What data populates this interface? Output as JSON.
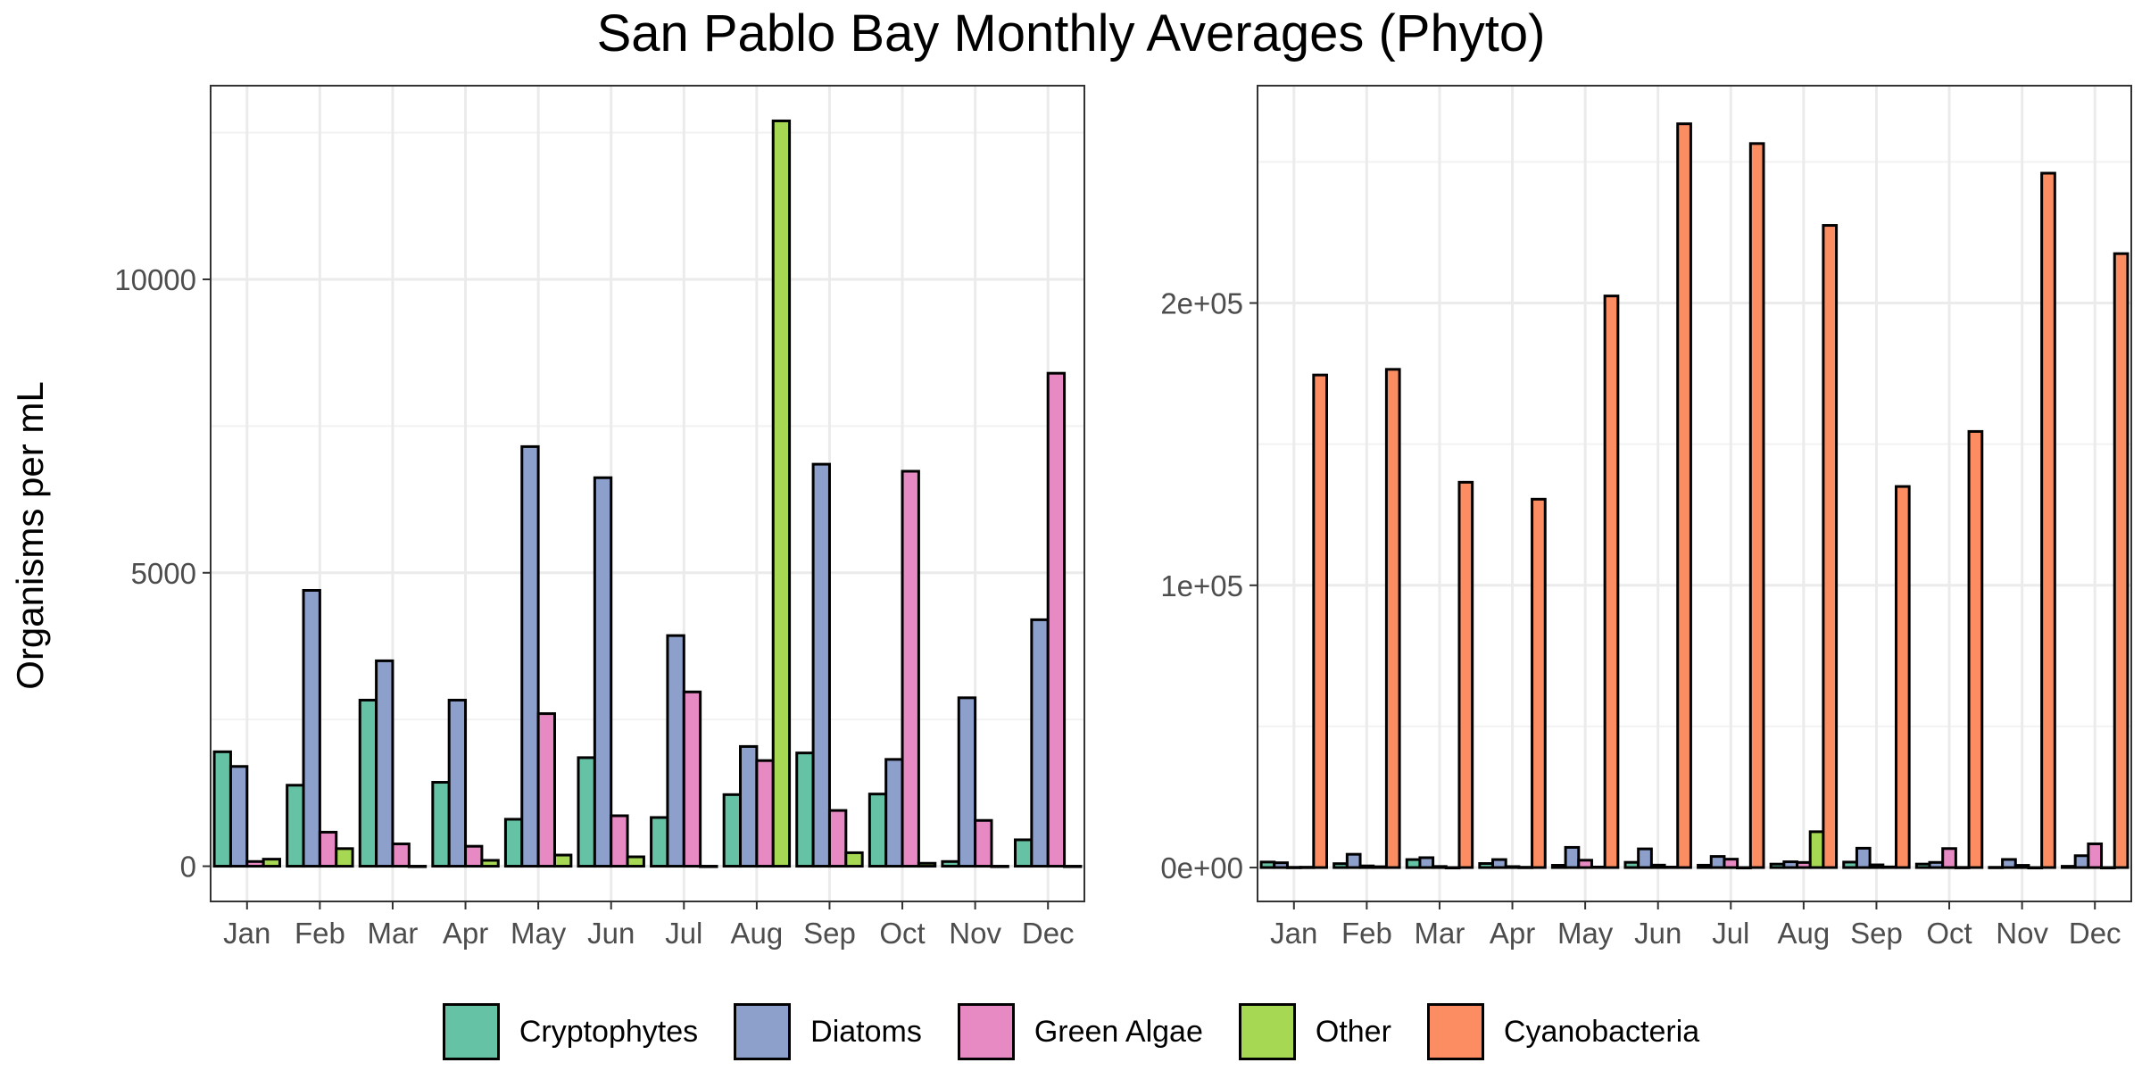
{
  "title": "San Pablo Bay Monthly Averages (Phyto)",
  "ylabel": "Organisms per mL",
  "colors": {
    "Cryptophytes": "#66C2A5",
    "Diatoms": "#8DA0CB",
    "Green Algae": "#E78AC3",
    "Other": "#A6D854",
    "Cyanobacteria": "#FC8D62"
  },
  "legend": [
    "Cryptophytes",
    "Diatoms",
    "Green Algae",
    "Other",
    "Cyanobacteria"
  ],
  "chart_data": [
    {
      "type": "bar",
      "categories": [
        "Jan",
        "Feb",
        "Mar",
        "Apr",
        "May",
        "Jun",
        "Jul",
        "Aug",
        "Sep",
        "Oct",
        "Nov",
        "Dec"
      ],
      "ylim": [
        -600,
        13300
      ],
      "yticks": [
        0,
        5000,
        10000
      ],
      "ytick_labels": [
        "0",
        "5000",
        "10000"
      ],
      "grid": true,
      "series": [
        {
          "name": "Cryptophytes",
          "values": [
            1950,
            1380,
            2830,
            1430,
            800,
            1850,
            830,
            1220,
            1930,
            1230,
            80,
            450
          ]
        },
        {
          "name": "Diatoms",
          "values": [
            1700,
            4700,
            3500,
            2830,
            7150,
            6620,
            3930,
            2040,
            6850,
            1820,
            2870,
            4200
          ]
        },
        {
          "name": "Green Algae",
          "values": [
            80,
            580,
            380,
            340,
            2600,
            860,
            2970,
            1800,
            950,
            6730,
            780,
            8400
          ]
        },
        {
          "name": "Other",
          "values": [
            120,
            300,
            0,
            100,
            190,
            160,
            0,
            12700,
            230,
            50,
            0,
            0
          ]
        }
      ]
    },
    {
      "type": "bar",
      "categories": [
        "Jan",
        "Feb",
        "Mar",
        "Apr",
        "May",
        "Jun",
        "Jul",
        "Aug",
        "Sep",
        "Oct",
        "Nov",
        "Dec"
      ],
      "ylim": [
        -12000,
        277000
      ],
      "yticks": [
        0,
        100000,
        200000
      ],
      "ytick_labels": [
        "0e+00",
        "1e+05",
        "2e+05"
      ],
      "grid": true,
      "series": [
        {
          "name": "Cryptophytes",
          "values": [
            1950,
            1380,
            2830,
            1430,
            800,
            1850,
            830,
            1220,
            1930,
            1230,
            80,
            450
          ]
        },
        {
          "name": "Diatoms",
          "values": [
            1700,
            4700,
            3500,
            2830,
            7150,
            6620,
            3930,
            2040,
            6850,
            1820,
            2870,
            4200
          ]
        },
        {
          "name": "Green Algae",
          "values": [
            80,
            580,
            380,
            340,
            2600,
            860,
            2970,
            1800,
            950,
            6730,
            780,
            8400
          ]
        },
        {
          "name": "Other",
          "values": [
            120,
            300,
            0,
            100,
            190,
            160,
            0,
            12700,
            230,
            50,
            0,
            0
          ]
        },
        {
          "name": "Cyanobacteria",
          "values": [
            174500,
            176500,
            136500,
            130500,
            202500,
            263500,
            256500,
            227500,
            135000,
            154500,
            246000,
            217500
          ]
        }
      ]
    }
  ]
}
